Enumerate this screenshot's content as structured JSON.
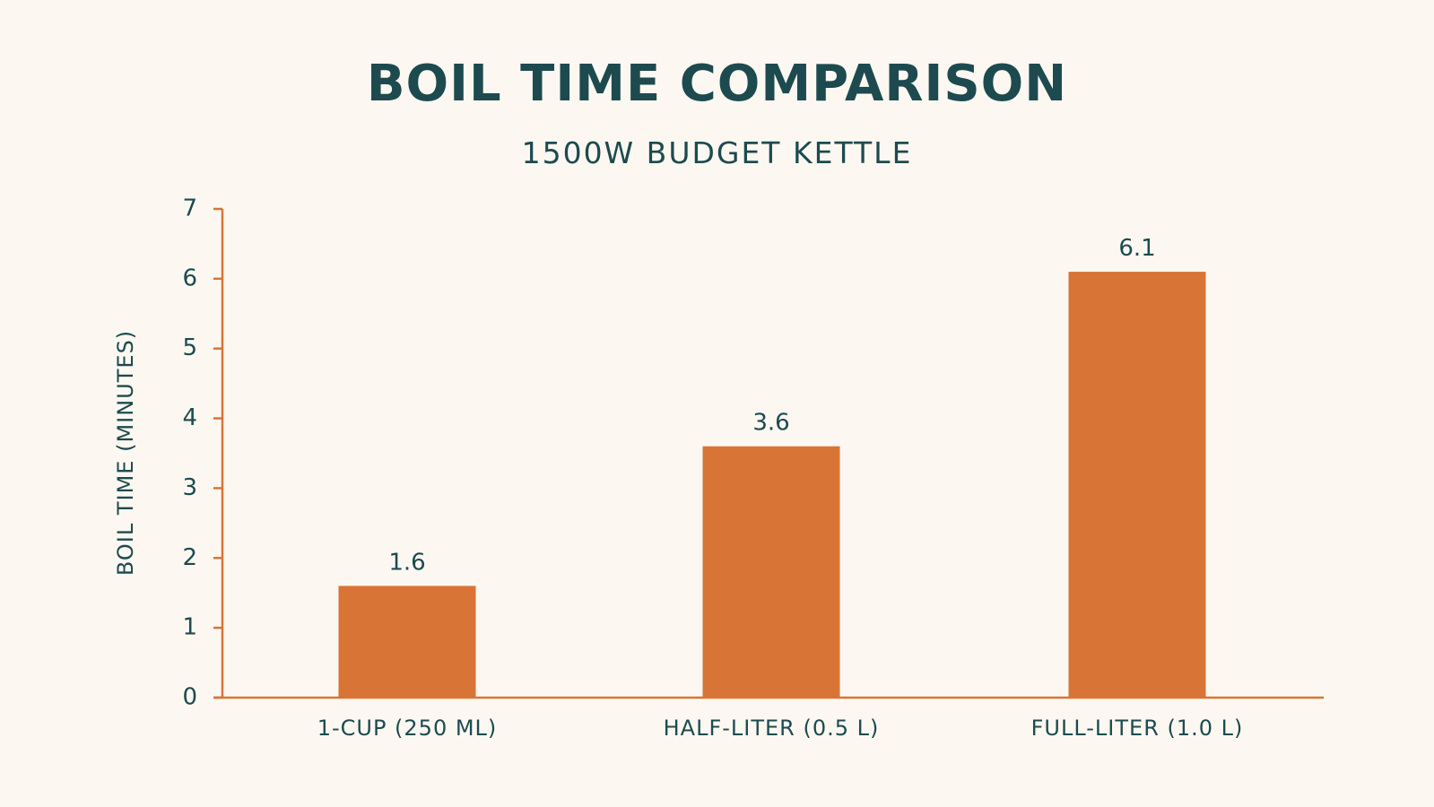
{
  "chart_data": {
    "type": "bar",
    "title": "BOIL TIME COMPARISON",
    "subtitle": "1500W BUDGET KETTLE",
    "xlabel": "",
    "ylabel": "BOIL TIME (MINUTES)",
    "categories": [
      "1-CUP (250 ML)",
      "HALF-LITER (0.5 L)",
      "FULL-LITER (1.0 L)"
    ],
    "values": [
      1.6,
      3.6,
      6.1
    ],
    "data_labels": [
      "1.6",
      "3.6",
      "6.1"
    ],
    "ylim": [
      0,
      7
    ],
    "yticks": [
      0,
      1,
      2,
      3,
      4,
      5,
      6,
      7
    ],
    "grid": false,
    "colors": {
      "bar": "#d87436",
      "axis": "#d87436",
      "text": "#1d4a4f",
      "background": "#fcf8f1"
    }
  }
}
